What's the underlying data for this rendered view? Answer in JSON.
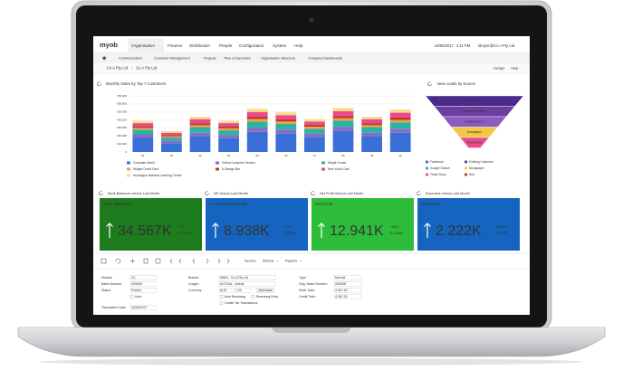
{
  "top_nav": {
    "logo": "myob",
    "menu": [
      "Organisation",
      "Finance",
      "Distribution",
      "People",
      "Configuration",
      "System",
      "Help"
    ],
    "date": "26/06/2017",
    "time": "4:11 PM",
    "user": "ldrayer@Co A Pty Ltd"
  },
  "sub_nav": [
    "Communication",
    "Customer Management",
    "Projects",
    "Time & Expenses",
    "Organisation Structure",
    "Company Dashboards"
  ],
  "breadcrumb": {
    "items": [
      "Co A Pty Ltd",
      "Co A Pty Ltd"
    ],
    "actions": [
      "Design",
      "Help"
    ]
  },
  "sales_chart": {
    "type": "bar",
    "stacked": true,
    "title": "Monthly Sales by Top 7 Customers",
    "categories": [
      "01",
      "02",
      "03",
      "04",
      "05",
      "06",
      "07",
      "08",
      "09",
      "10"
    ],
    "series": [
      {
        "name": "Computer World",
        "color": "#3a6fd8",
        "values": [
          180000,
          110000,
          200000,
          170000,
          250000,
          230000,
          190000,
          260000,
          200000,
          240000
        ]
      },
      {
        "name": "Global Computer Service",
        "color": "#8b6cc4",
        "values": [
          40000,
          30000,
          40000,
          40000,
          50000,
          50000,
          40000,
          50000,
          40000,
          50000
        ]
      },
      {
        "name": "Wright Corner",
        "color": "#2bb3a3",
        "values": [
          60000,
          40000,
          70000,
          60000,
          80000,
          70000,
          60000,
          80000,
          70000,
          80000
        ]
      },
      {
        "name": "Widget Credit Card",
        "color": "#f5a142",
        "values": [
          20000,
          15000,
          25000,
          25000,
          30000,
          30000,
          25000,
          30000,
          25000,
          30000
        ]
      },
      {
        "name": "A Garage Bar",
        "color": "#c0392b",
        "values": [
          20000,
          15000,
          25000,
          25000,
          30000,
          30000,
          25000,
          30000,
          25000,
          30000
        ]
      },
      {
        "name": "New Youth Cars",
        "color": "#e84a8c",
        "values": [
          40000,
          30000,
          50000,
          40000,
          60000,
          50000,
          40000,
          60000,
          50000,
          60000
        ]
      },
      {
        "name": "Huntington National Learning Center",
        "color": "#f5de8a",
        "values": [
          30000,
          20000,
          30000,
          30000,
          40000,
          40000,
          30000,
          40000,
          30000,
          40000
        ]
      }
    ],
    "ylim": [
      0,
      700000
    ],
    "yticks": [
      0,
      {
        "value": 100000,
        "label": "100,000"
      },
      {
        "value": 200000,
        "label": "200,000"
      },
      {
        "value": 300000,
        "label": "300,000"
      },
      {
        "value": 400000,
        "label": "400,000"
      },
      {
        "value": 500000,
        "label": "500,000"
      },
      {
        "value": 600000,
        "label": "600,000"
      },
      {
        "value": 700000,
        "label": "700,000"
      }
    ],
    "grid": true
  },
  "leads_funnel": {
    "title": "New Leads by Source",
    "stages": [
      {
        "label": "Facebook",
        "color": "#4a2a8a"
      },
      {
        "label": "Existing Customer",
        "color": "#6b3fa0"
      },
      {
        "label": "Google Search",
        "color": "#8a5cc0"
      },
      {
        "label": "Newspaper",
        "color": "#f2c744"
      },
      {
        "label": "Trade Show",
        "color": "#e84a8c"
      }
    ],
    "legend": [
      {
        "name": "Facebook",
        "color": "#3a6fd8"
      },
      {
        "name": "Existing Customer",
        "color": "#6b3fa0"
      },
      {
        "name": "Google Search",
        "color": "#2bb3a3"
      },
      {
        "name": "Newspaper",
        "color": "#f2c744"
      },
      {
        "name": "Trade Show",
        "color": "#e84a8c"
      },
      {
        "name": "Hull",
        "color": "#c0392b"
      }
    ]
  },
  "kpis": [
    {
      "header": "Bank Balances versus Last Month",
      "title": "Bank Balances",
      "value": "34.567K",
      "change": "+0%",
      "previous": "32.219M",
      "color": "#1e7b1e"
    },
    {
      "header": "AR Versus Last Month",
      "title": "Accounts Receivable",
      "value": "8.938K",
      "change": "+1%",
      "previous": "1.461M",
      "color": "#1565c0"
    },
    {
      "header": "Net Profit Versus Last Month",
      "title": "Net Profit",
      "value": "12.941K",
      "change": "+26%",
      "previous": "25.259K",
      "color": "#2ebd3a"
    },
    {
      "header": "Expenses versus Last Month",
      "title": "Expenses",
      "value": "2.222K",
      "change": "+180%",
      "previous": "2.354M",
      "color": "#1565c0"
    }
  ],
  "toolbar": [
    "Service",
    "Actions",
    "Reports"
  ],
  "form": {
    "left": [
      {
        "label": "Module:",
        "value": "GL"
      },
      {
        "label": "Batch Number:",
        "value": "000639"
      },
      {
        "label": "Status:",
        "value": "Posted"
      },
      {
        "checkbox": "Hold"
      },
      {
        "label": "Transaction Date:",
        "value": "16/06/2017"
      }
    ],
    "middle": [
      {
        "label": "Branch:",
        "value": "MAIN - Co A Pty Ltd"
      },
      {
        "label": "Ledger:",
        "value": "ACTUAL - Actual"
      },
      {
        "label": "Currency:",
        "value": "AUD",
        "rate": "1.00",
        "button": "View base"
      },
      {
        "checkbox": "Auto Reversing",
        "checkbox2": "Reversing Entry"
      },
      {
        "checkbox": "Create Tax Transactions"
      }
    ],
    "right": [
      {
        "label": "Type:",
        "value": "Normal"
      },
      {
        "label": "Orig. Batch Number:",
        "value": "000638"
      },
      {
        "label": "Debit Total:",
        "value": "4,367.00"
      },
      {
        "label": "Credit Total:",
        "value": "4,367.00"
      }
    ]
  }
}
